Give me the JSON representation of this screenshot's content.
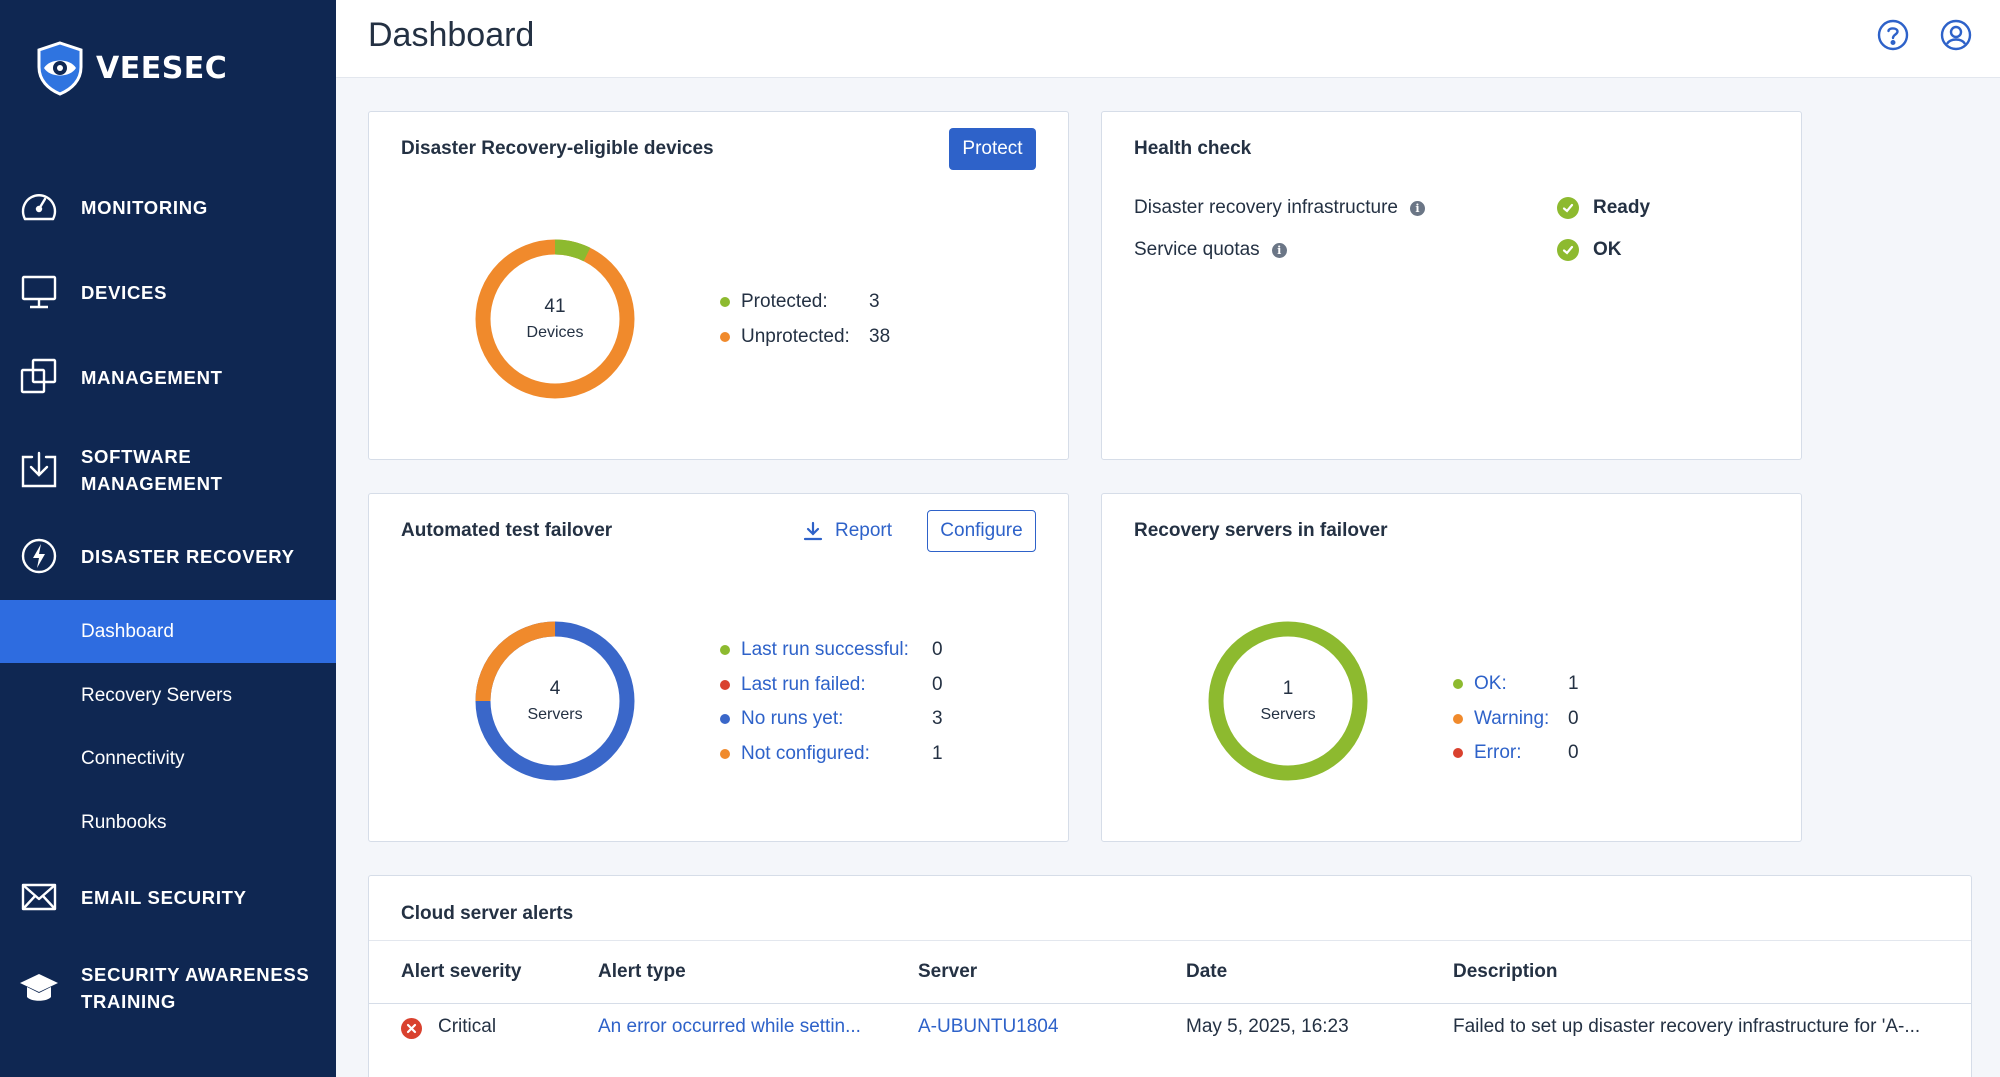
{
  "brand": {
    "name": "VEESEC"
  },
  "sidebar": {
    "items": [
      {
        "label": "MONITORING",
        "icon": "speedometer-icon"
      },
      {
        "label": "DEVICES",
        "icon": "monitor-icon"
      },
      {
        "label": "MANAGEMENT",
        "icon": "copy-icon"
      },
      {
        "label": "SOFTWARE\nMANAGEMENT",
        "icon": "download-box-icon"
      },
      {
        "label": "DISASTER RECOVERY",
        "icon": "lightning-circle-icon"
      },
      {
        "label": "EMAIL SECURITY",
        "icon": "envelope-icon"
      },
      {
        "label": "SECURITY AWARENESS\nTRAINING",
        "icon": "graduation-cap-icon"
      }
    ],
    "sub_items": [
      {
        "label": "Dashboard",
        "active": true
      },
      {
        "label": "Recovery Servers",
        "active": false
      },
      {
        "label": "Connectivity",
        "active": false
      },
      {
        "label": "Runbooks",
        "active": false
      }
    ]
  },
  "header": {
    "title": "Dashboard",
    "icons": [
      "help-icon",
      "user-account-icon"
    ]
  },
  "dr_devices": {
    "title": "Disaster Recovery-eligible devices",
    "protect_label": "Protect",
    "total": "41",
    "unit": "Devices",
    "legend": [
      {
        "label": "Protected:",
        "value": "3",
        "color": "#8dba2f"
      },
      {
        "label": "Unprotected:",
        "value": "38",
        "color": "#f08a2c"
      }
    ]
  },
  "health": {
    "title": "Health check",
    "rows": [
      {
        "label": "Disaster recovery infrastructure",
        "status": "Ready"
      },
      {
        "label": "Service quotas",
        "status": "OK"
      }
    ]
  },
  "failover_test": {
    "title": "Automated test failover",
    "report_label": "Report",
    "configure_label": "Configure",
    "total": "4",
    "unit": "Servers",
    "legend": [
      {
        "label": "Last run successful:",
        "value": "0",
        "color": "#8dba2f"
      },
      {
        "label": "Last run failed:",
        "value": "0",
        "color": "#d9412e"
      },
      {
        "label": "No runs yet:",
        "value": "3",
        "color": "#3a67c9"
      },
      {
        "label": "Not configured:",
        "value": "1",
        "color": "#f08a2c"
      }
    ]
  },
  "recovery_servers": {
    "title": "Recovery servers in failover",
    "total": "1",
    "unit": "Servers",
    "legend": [
      {
        "label": "OK:",
        "value": "1",
        "color": "#8dba2f"
      },
      {
        "label": "Warning:",
        "value": "0",
        "color": "#f08a2c"
      },
      {
        "label": "Error:",
        "value": "0",
        "color": "#d9412e"
      }
    ]
  },
  "alerts": {
    "title": "Cloud server alerts",
    "columns": [
      "Alert severity",
      "Alert type",
      "Server",
      "Date",
      "Description"
    ],
    "rows": [
      {
        "severity": "Critical",
        "type": "An error occurred while settin...",
        "server": "A-UBUNTU1804",
        "date": "May 5, 2025, 16:23",
        "description": "Failed to set up disaster recovery infrastructure for 'A-..."
      }
    ]
  },
  "colors": {
    "sidebar_bg": "#0f2752",
    "accent": "#2e62c9",
    "active_nav": "#2e6ce0",
    "green": "#8dba2f",
    "orange": "#f08a2c",
    "red": "#d9412e",
    "blue": "#3a67c9"
  }
}
